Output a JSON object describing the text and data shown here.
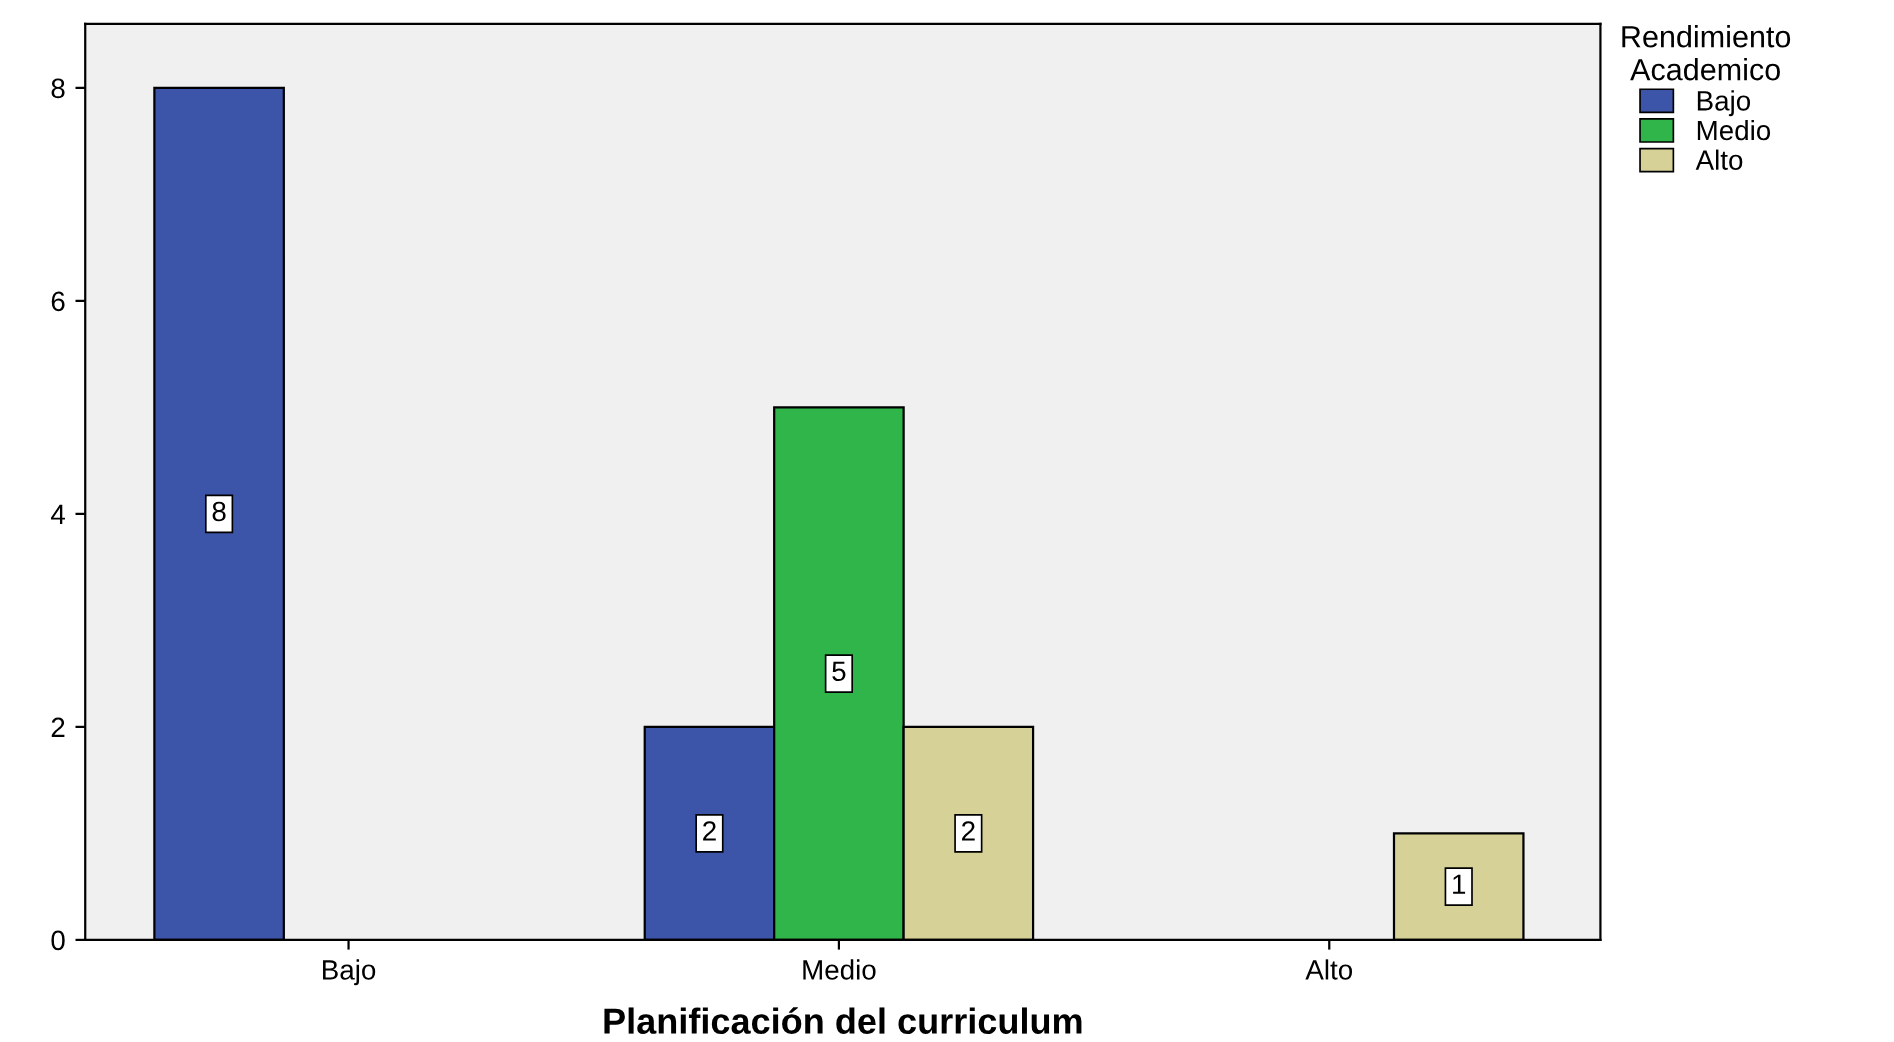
{
  "chart_data": {
    "type": "bar",
    "xlabel": "Planificación del curriculum",
    "legend_title": "Rendimiento\nAcademico",
    "categories": [
      "Bajo",
      "Medio",
      "Alto"
    ],
    "series": [
      {
        "name": "Bajo",
        "color": "#3d55a8",
        "values": [
          8,
          2,
          null
        ]
      },
      {
        "name": "Medio",
        "color": "#2fb54a",
        "values": [
          null,
          5,
          null
        ]
      },
      {
        "name": "Alto",
        "color": "#d6d196",
        "values": [
          null,
          2,
          1
        ]
      }
    ],
    "ylim": [
      0,
      8.6
    ],
    "yticks": [
      0,
      2,
      4,
      6,
      8
    ],
    "grid": false,
    "legend": "top right",
    "data_labels": true
  }
}
